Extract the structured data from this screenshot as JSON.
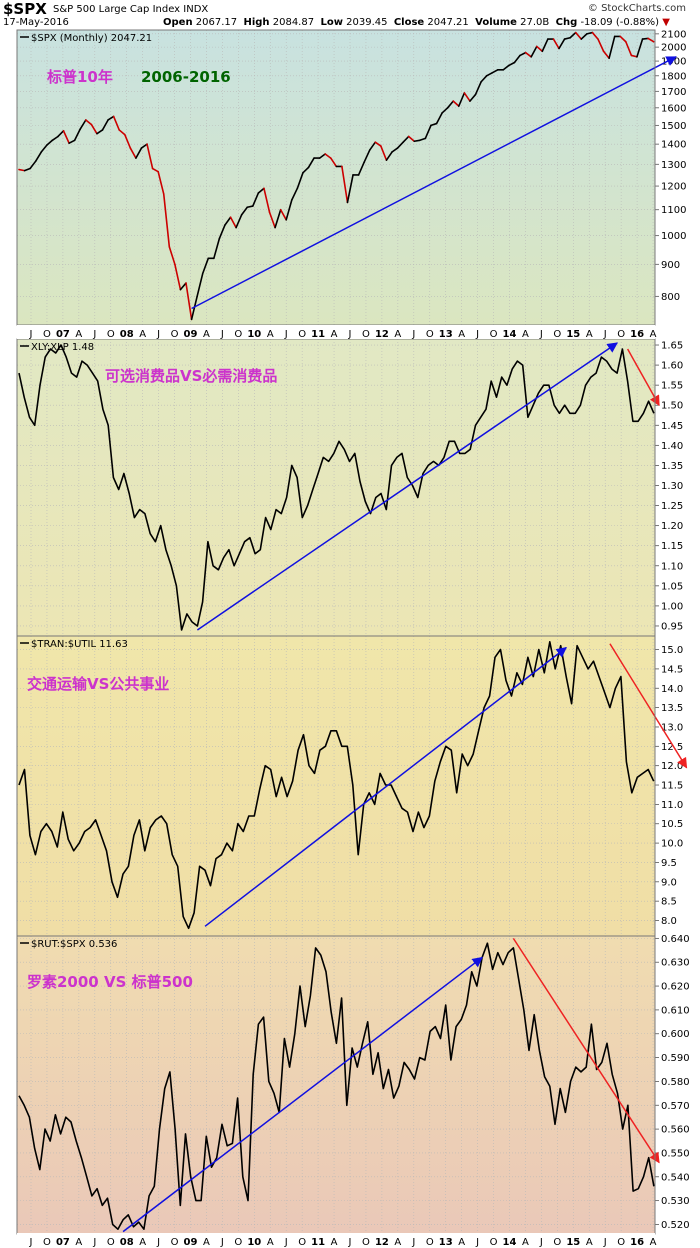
{
  "header": {
    "symbol": "$SPX",
    "name": "S&P 500 Large Cap Index  INDX",
    "credit": "© StockCharts.com",
    "date": "17-May-2016",
    "open_label": "Open",
    "open": "2067.17",
    "high_label": "High",
    "high": "2084.87",
    "low_label": "Low",
    "low": "2039.45",
    "close_label": "Close",
    "close": "2047.21",
    "volume_label": "Volume",
    "volume": "27.0B",
    "chg_label": "Chg",
    "chg": "-18.09 (-0.88%)",
    "chg_arrow": "▼"
  },
  "x_axis": {
    "labels": [
      "J",
      "O",
      "07",
      "A",
      "J",
      "O",
      "08",
      "A",
      "J",
      "O",
      "09",
      "A",
      "J",
      "O",
      "10",
      "A",
      "J",
      "O",
      "11",
      "A",
      "J",
      "O",
      "12",
      "A",
      "J",
      "O",
      "13",
      "A",
      "J",
      "O",
      "14",
      "A",
      "J",
      "O",
      "15",
      "A",
      "J",
      "O",
      "16",
      "A"
    ]
  },
  "chart_data": [
    {
      "type": "line",
      "panel": "spx",
      "label": "$SPX (Monthly) 2047.21",
      "annotation_title": "标普10年",
      "annotation_years": "2006-2016",
      "scale": "log",
      "ylim": [
        720,
        2130
      ],
      "yticks": [
        800,
        900,
        1000,
        1100,
        1200,
        1300,
        1400,
        1500,
        1600,
        1700,
        1800,
        1900,
        2000,
        2100
      ],
      "colors": {
        "up": "#000000",
        "down": "#cc0000",
        "annotation": "#cc33cc",
        "years": "#006400",
        "trend": "#1010e0",
        "bg_top": "#c8e2e0",
        "bg_bottom": "#dbe6c0"
      },
      "series": [
        {
          "values": [
            1275,
            1270,
            1280,
            1315,
            1360,
            1395,
            1420,
            1440,
            1470,
            1405,
            1420,
            1480,
            1530,
            1505,
            1455,
            1475,
            1530,
            1550,
            1475,
            1450,
            1380,
            1330,
            1380,
            1400,
            1280,
            1265,
            1165,
            960,
            900,
            820,
            840,
            735,
            800,
            870,
            920,
            920,
            990,
            1040,
            1070,
            1030,
            1080,
            1110,
            1115,
            1170,
            1190,
            1090,
            1030,
            1100,
            1060,
            1140,
            1190,
            1260,
            1285,
            1330,
            1330,
            1350,
            1330,
            1290,
            1290,
            1130,
            1250,
            1250,
            1310,
            1370,
            1410,
            1390,
            1320,
            1360,
            1380,
            1410,
            1440,
            1415,
            1420,
            1430,
            1500,
            1510,
            1570,
            1600,
            1640,
            1610,
            1690,
            1640,
            1680,
            1760,
            1800,
            1820,
            1840,
            1840,
            1870,
            1890,
            1940,
            1960,
            1930,
            2005,
            1970,
            2060,
            2060,
            1990,
            2060,
            2070,
            2110,
            2060,
            2100,
            2110,
            2060,
            1970,
            1920,
            2080,
            2080,
            2040,
            1940,
            1930,
            2060,
            2065,
            2040
          ]
        }
      ],
      "trend_arrow": {
        "from": [
          31,
          765
        ],
        "to": [
          118,
          1930
        ]
      }
    },
    {
      "type": "line",
      "panel": "xly_xlp",
      "label": "XLY:XLP 1.48",
      "annotation": "可选消费品VS必需消费品",
      "ylim": [
        0.925,
        1.665
      ],
      "yticks": [
        0.95,
        1.0,
        1.05,
        1.1,
        1.15,
        1.2,
        1.25,
        1.3,
        1.35,
        1.4,
        1.45,
        1.5,
        1.55,
        1.6,
        1.65
      ],
      "colors": {
        "line": "#000000",
        "annotation": "#cc33cc",
        "trend": "#1010e0",
        "down_arrow": "#ee2222",
        "bg_top": "#e1e8c4",
        "bg_bottom": "#ece6b4"
      },
      "series": [
        {
          "values": [
            1.58,
            1.52,
            1.47,
            1.45,
            1.55,
            1.62,
            1.64,
            1.63,
            1.65,
            1.62,
            1.58,
            1.57,
            1.61,
            1.6,
            1.58,
            1.56,
            1.49,
            1.45,
            1.32,
            1.29,
            1.33,
            1.28,
            1.22,
            1.24,
            1.23,
            1.18,
            1.16,
            1.2,
            1.14,
            1.1,
            1.05,
            0.94,
            0.98,
            0.96,
            0.95,
            1.01,
            1.16,
            1.1,
            1.09,
            1.12,
            1.14,
            1.1,
            1.13,
            1.16,
            1.17,
            1.13,
            1.14,
            1.22,
            1.19,
            1.24,
            1.23,
            1.27,
            1.35,
            1.32,
            1.22,
            1.25,
            1.29,
            1.33,
            1.37,
            1.36,
            1.38,
            1.41,
            1.39,
            1.36,
            1.38,
            1.31,
            1.26,
            1.23,
            1.27,
            1.28,
            1.24,
            1.35,
            1.37,
            1.38,
            1.32,
            1.3,
            1.27,
            1.33,
            1.35,
            1.36,
            1.35,
            1.37,
            1.41,
            1.41,
            1.38,
            1.38,
            1.39,
            1.45,
            1.47,
            1.49,
            1.56,
            1.52,
            1.57,
            1.55,
            1.59,
            1.61,
            1.6,
            1.47,
            1.5,
            1.53,
            1.55,
            1.55,
            1.5,
            1.48,
            1.5,
            1.48,
            1.48,
            1.5,
            1.55,
            1.57,
            1.58,
            1.62,
            1.61,
            1.59,
            1.58,
            1.64,
            1.56,
            1.46,
            1.46,
            1.48,
            1.51,
            1.48
          ]
        }
      ],
      "trend_arrow": {
        "from": [
          34,
          0.94
        ],
        "to": [
          114,
          1.655
        ]
      },
      "down_arrow": {
        "from": [
          116,
          1.64
        ],
        "to": [
          122,
          1.5
        ]
      }
    },
    {
      "type": "line",
      "panel": "tran_util",
      "label": "$TRAN:$UTIL 11.63",
      "annotation": "交通运输VS公共事业",
      "ylim": [
        7.6,
        15.35
      ],
      "yticks": [
        8.0,
        8.5,
        9.0,
        9.5,
        10.0,
        10.5,
        11.0,
        11.5,
        12.0,
        12.5,
        13.0,
        13.5,
        14.0,
        14.5,
        15.0
      ],
      "colors": {
        "line": "#000000",
        "annotation": "#cc33cc",
        "trend": "#1010e0",
        "down_arrow": "#ee2222",
        "bg_top": "#f0e6aa",
        "bg_bottom": "#f0dea6"
      },
      "series": [
        {
          "values": [
            11.5,
            11.9,
            10.2,
            9.7,
            10.3,
            10.5,
            10.3,
            9.9,
            10.8,
            10.1,
            9.8,
            10.0,
            10.3,
            10.4,
            10.6,
            10.2,
            9.8,
            9.0,
            8.6,
            9.2,
            9.4,
            10.2,
            10.6,
            9.8,
            10.4,
            10.6,
            10.7,
            10.5,
            9.7,
            9.4,
            8.1,
            7.8,
            8.2,
            9.4,
            9.3,
            8.9,
            9.6,
            9.7,
            10.0,
            9.8,
            10.5,
            10.3,
            10.7,
            10.7,
            11.4,
            12.0,
            11.9,
            11.2,
            11.7,
            11.2,
            11.6,
            12.4,
            12.8,
            12.0,
            11.8,
            12.4,
            12.5,
            12.9,
            12.9,
            12.5,
            12.5,
            11.5,
            9.7,
            11.0,
            11.3,
            11.0,
            11.8,
            11.5,
            11.5,
            11.2,
            10.9,
            10.8,
            10.3,
            10.8,
            10.4,
            10.7,
            11.6,
            12.1,
            12.5,
            12.4,
            11.3,
            12.3,
            12.0,
            12.3,
            12.9,
            13.5,
            13.8,
            14.8,
            15.0,
            14.2,
            13.8,
            14.4,
            14.1,
            14.8,
            14.3,
            15.0,
            14.4,
            15.2,
            14.5,
            15.1,
            14.3,
            13.6,
            15.1,
            14.8,
            14.5,
            14.7,
            14.3,
            13.9,
            13.5,
            14.0,
            14.3,
            12.1,
            11.3,
            11.7,
            11.8,
            11.9,
            11.6
          ]
        }
      ],
      "trend_arrow": {
        "from": [
          34,
          7.85
        ],
        "to": [
          100,
          15.05
        ]
      },
      "down_arrow": {
        "from": [
          108,
          15.15
        ],
        "to": [
          122,
          11.95
        ]
      }
    },
    {
      "type": "line",
      "panel": "rut_spx",
      "label": "$RUT:$SPX 0.536",
      "annotation": "罗素2000 VS 标普500",
      "ylim": [
        0.516,
        0.641
      ],
      "yticks": [
        0.52,
        0.53,
        0.54,
        0.55,
        0.56,
        0.57,
        0.58,
        0.59,
        0.6,
        0.61,
        0.62,
        0.63,
        0.64
      ],
      "colors": {
        "line": "#000000",
        "annotation": "#cc33cc",
        "trend": "#1010e0",
        "down_arrow": "#ee2222",
        "bg_top": "#f0dcb0",
        "bg_bottom": "#eac8b8"
      },
      "series": [
        {
          "values": [
            0.574,
            0.57,
            0.565,
            0.552,
            0.543,
            0.56,
            0.555,
            0.566,
            0.558,
            0.565,
            0.563,
            0.555,
            0.548,
            0.54,
            0.532,
            0.535,
            0.528,
            0.531,
            0.52,
            0.518,
            0.522,
            0.524,
            0.519,
            0.521,
            0.518,
            0.532,
            0.536,
            0.56,
            0.577,
            0.584,
            0.56,
            0.528,
            0.558,
            0.54,
            0.53,
            0.53,
            0.557,
            0.544,
            0.548,
            0.562,
            0.553,
            0.554,
            0.573,
            0.54,
            0.53,
            0.583,
            0.604,
            0.607,
            0.58,
            0.575,
            0.567,
            0.598,
            0.586,
            0.6,
            0.62,
            0.603,
            0.616,
            0.636,
            0.633,
            0.626,
            0.609,
            0.596,
            0.615,
            0.57,
            0.594,
            0.586,
            0.596,
            0.605,
            0.583,
            0.592,
            0.577,
            0.585,
            0.573,
            0.578,
            0.588,
            0.585,
            0.581,
            0.59,
            0.589,
            0.601,
            0.603,
            0.598,
            0.612,
            0.589,
            0.603,
            0.606,
            0.612,
            0.626,
            0.62,
            0.632,
            0.638,
            0.627,
            0.634,
            0.629,
            0.634,
            0.636,
            0.623,
            0.61,
            0.593,
            0.608,
            0.593,
            0.582,
            0.578,
            0.562,
            0.577,
            0.567,
            0.58,
            0.586,
            0.584,
            0.586,
            0.604,
            0.585,
            0.588,
            0.596,
            0.583,
            0.575,
            0.56,
            0.57,
            0.534,
            0.535,
            0.54,
            0.548,
            0.536
          ]
        }
      ],
      "trend_arrow": {
        "from": [
          20,
          0.517
        ],
        "to": [
          89,
          0.632
        ]
      },
      "down_arrow": {
        "from": [
          95,
          0.64
        ],
        "to": [
          123,
          0.546
        ]
      }
    }
  ]
}
